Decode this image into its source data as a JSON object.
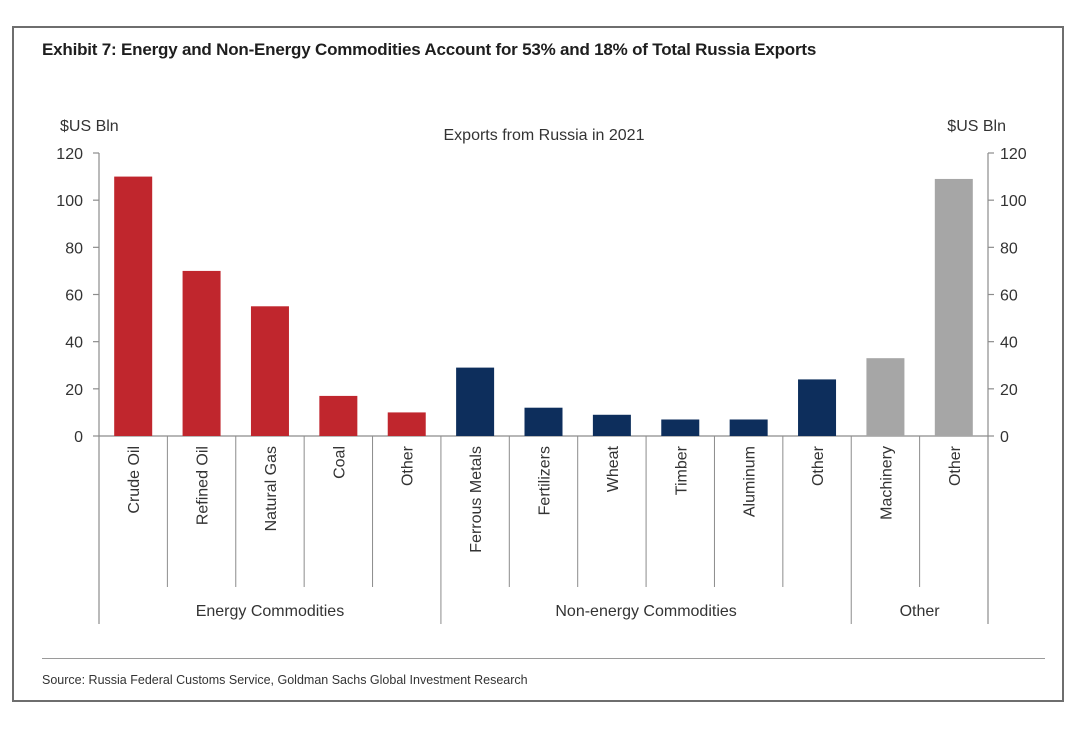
{
  "exhibit_title": "Exhibit 7: Energy and Non-Energy Commodities Account for 53% and 18% of Total Russia Exports",
  "source": "Source: Russia Federal Customs Service, Goldman Sachs Global Investment Research",
  "chart_data": {
    "type": "bar",
    "title": "Exports from Russia in 2021",
    "ylabel_left": "$US Bln",
    "ylabel_right": "$US Bln",
    "ylim": [
      0,
      120
    ],
    "yticks": [
      0,
      20,
      40,
      60,
      80,
      100,
      120
    ],
    "grid": false,
    "categories": [
      "Crude Oil",
      "Refined Oil",
      "Natural Gas",
      "Coal",
      "Other",
      "Ferrous Metals",
      "Fertilizers",
      "Wheat",
      "Timber",
      "Aluminum",
      "Other",
      "Machinery",
      "Other"
    ],
    "values": [
      110,
      70,
      55,
      17,
      10,
      29,
      12,
      9,
      7,
      7,
      24,
      33,
      109
    ],
    "groups": [
      {
        "name": "Energy Commodities",
        "count": 5,
        "color": "#c0262d"
      },
      {
        "name": "Non-energy Commodities",
        "count": 6,
        "color": "#0d2e5c"
      },
      {
        "name": "Other",
        "count": 2,
        "color": "#a6a6a6"
      }
    ]
  }
}
